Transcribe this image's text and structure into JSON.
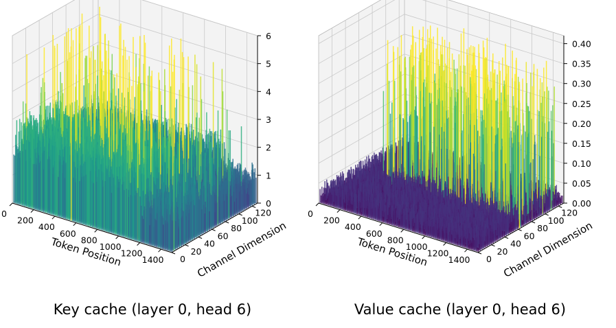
{
  "chart_data": [
    {
      "type": "surface3d",
      "title": "Key cache (layer 0, head 6)",
      "xlabel": "Token Position",
      "ylabel": "Channel Dimension",
      "zlabel": "",
      "xlim": [
        0,
        1500
      ],
      "ylim": [
        0,
        128
      ],
      "zlim": [
        0,
        6
      ],
      "xticks": [
        "0",
        "200",
        "400",
        "600",
        "800",
        "1000",
        "1200",
        "1400"
      ],
      "yticks": [
        "0",
        "20",
        "40",
        "60",
        "80",
        "100",
        "120"
      ],
      "zticks": [
        "0",
        "1",
        "2",
        "3",
        "4",
        "5",
        "6"
      ],
      "colormap": "viridis",
      "channel_bands": [
        {
          "channels": [
            0,
            64
          ],
          "typical_magnitude": 2.5,
          "color_level": "high"
        },
        {
          "channels": [
            64,
            128
          ],
          "typical_magnitude": 1.8,
          "color_level": "medium"
        }
      ],
      "dropoff_after_token": 1200,
      "peak_value": 5.8
    },
    {
      "type": "surface3d",
      "title": "Value cache (layer 0, head 6)",
      "xlabel": "Token Position",
      "ylabel": "Channel Dimension",
      "zlabel": "",
      "xlim": [
        0,
        1500
      ],
      "ylim": [
        0,
        128
      ],
      "zlim": [
        0,
        0.42
      ],
      "xticks": [
        "0",
        "200",
        "400",
        "600",
        "800",
        "1000",
        "1200",
        "1400"
      ],
      "yticks": [
        "0",
        "20",
        "40",
        "60",
        "80",
        "100",
        "120"
      ],
      "zticks": [
        "0.00",
        "0.05",
        "0.10",
        "0.15",
        "0.20",
        "0.25",
        "0.30",
        "0.35",
        "0.40"
      ],
      "colormap": "viridis",
      "baseline_magnitude": 0.03,
      "spike_token_range": [
        200,
        1500
      ],
      "spike_channel_range": [
        60,
        128
      ],
      "peak_value": 0.37
    }
  ]
}
